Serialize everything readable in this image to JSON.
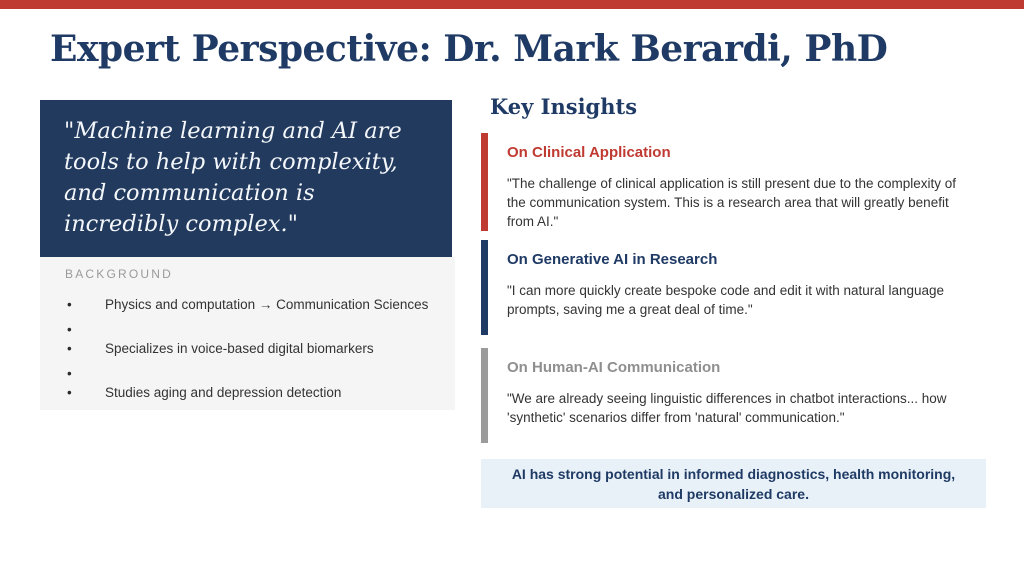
{
  "colors": {
    "accent_red": "#BF3A31",
    "navy": "#1F3A64",
    "quote_box_bg": "#223A5E",
    "bar_gray": "#9B9B9B",
    "heading_gray": "#8F8F8F",
    "body_text": "#333333",
    "bg_box": "#F5F5F6",
    "takeaway_bg": "#E8F1F8",
    "label_gray": "#9A9A9A"
  },
  "header": {
    "title": "Expert Perspective: Dr. Mark Berardi, PhD"
  },
  "quote_box": {
    "text": "\"Machine learning and AI are tools to help with complexity, and communication is incredibly complex.\""
  },
  "background": {
    "label": "BACKGROUND",
    "bullets": [
      "Physics and computation → Communication Sciences",
      "",
      "Specializes in voice-based digital biomarkers",
      "",
      "Studies aging and depression detection"
    ]
  },
  "key_insights": {
    "heading": "Key Insights",
    "sections": [
      {
        "title": "On Clinical Application",
        "accent": "#BF3A31",
        "quote": "\"The challenge of clinical application is still present due to the complexity of the communication system. This is a research area that will greatly benefit from AI.\""
      },
      {
        "title": "On Generative AI in Research",
        "accent": "#1F3A64",
        "quote": "\"I can more quickly create bespoke code and edit it with natural language prompts, saving me a great deal of time.\""
      },
      {
        "title": "On Human-AI Communication",
        "accent": "#9B9B9B",
        "quote": "\"We are already seeing linguistic differences in chatbot interactions... how 'synthetic' scenarios differ from 'natural' communication.\""
      }
    ],
    "takeaway": "AI has strong potential in informed diagnostics, health monitoring, and personalized care."
  }
}
